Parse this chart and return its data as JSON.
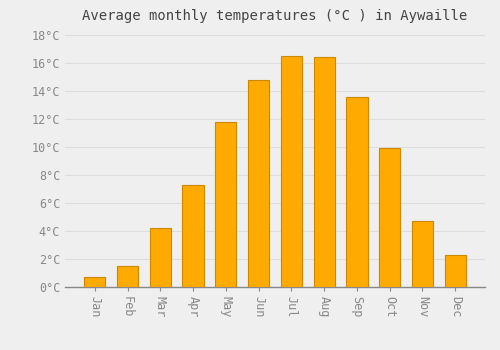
{
  "title": "Average monthly temperatures (°C ) in Aywaille",
  "months": [
    "Jan",
    "Feb",
    "Mar",
    "Apr",
    "May",
    "Jun",
    "Jul",
    "Aug",
    "Sep",
    "Oct",
    "Nov",
    "Dec"
  ],
  "values": [
    0.7,
    1.5,
    4.2,
    7.3,
    11.8,
    14.8,
    16.5,
    16.4,
    13.6,
    9.9,
    4.7,
    2.3
  ],
  "bar_color": "#FFAA00",
  "bar_edge_color": "#CC8800",
  "background_color": "#EFEFEF",
  "plot_bg_color": "#EFEFEF",
  "ylim": [
    0,
    18.5
  ],
  "yticks": [
    0,
    2,
    4,
    6,
    8,
    10,
    12,
    14,
    16,
    18
  ],
  "ytick_labels": [
    "0°C",
    "2°C",
    "4°C",
    "6°C",
    "8°C",
    "10°C",
    "12°C",
    "14°C",
    "16°C",
    "18°C"
  ],
  "title_fontsize": 10,
  "tick_fontsize": 8.5,
  "grid_color": "#DDDDDD",
  "font_family": "monospace",
  "tick_color": "#888888",
  "spine_color": "#888888"
}
